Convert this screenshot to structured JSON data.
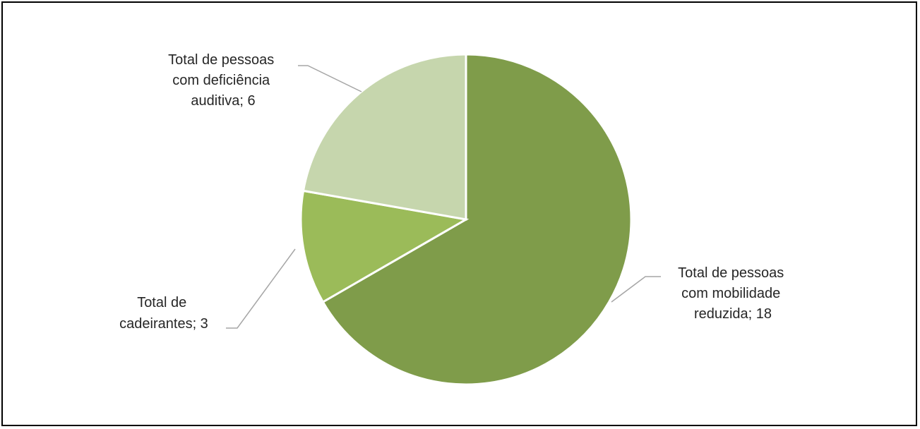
{
  "chart_data": {
    "type": "pie",
    "slices": [
      {
        "label": "Total de pessoas com mobilidade reduzida",
        "value": 18,
        "color": "#7f9c4a",
        "label_lines": [
          "Total de pessoas",
          "com mobilidade",
          "reduzida; 18"
        ]
      },
      {
        "label": "Total de cadeirantes",
        "value": 3,
        "color": "#9bbb59",
        "label_lines": [
          "Total de",
          "cadeirantes; 3"
        ]
      },
      {
        "label": "Total de pessoas com deficiência auditiva",
        "value": 6,
        "color": "#c6d6ad",
        "label_lines": [
          "Total de pessoas",
          "com deficiência",
          "auditiva; 6"
        ]
      }
    ],
    "start_angle": "12 o'clock",
    "direction": "clockwise",
    "legend": "none"
  }
}
